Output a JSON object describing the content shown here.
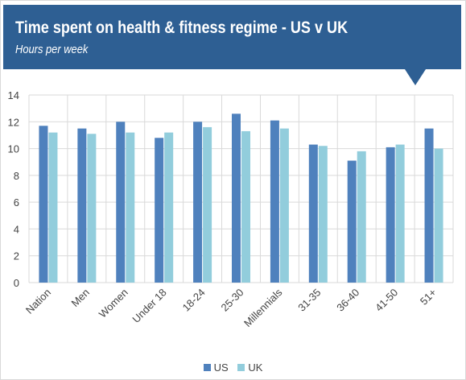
{
  "header": {
    "title": "Time spent on health & fitness regime - US v UK",
    "subtitle": "Hours per week"
  },
  "colors": {
    "banner": "#2e5f93",
    "us": "#4f81bd",
    "uk": "#92cddc",
    "grid": "#d9d9d9"
  },
  "chart_data": {
    "type": "bar",
    "title": "Time spent on health & fitness regime - US v UK",
    "subtitle": "Hours per week",
    "xlabel": "",
    "ylabel": "",
    "ylim": [
      0,
      14
    ],
    "yticks": [
      0,
      2,
      4,
      6,
      8,
      10,
      12,
      14
    ],
    "grid": true,
    "legend_position": "bottom",
    "categories": [
      "Nation",
      "Men",
      "Women",
      "Under 18",
      "18-24",
      "25-30",
      "Millennials",
      "31-35",
      "36-40",
      "41-50",
      "51+"
    ],
    "series": [
      {
        "name": "US",
        "values": [
          11.7,
          11.5,
          12.0,
          10.8,
          12.0,
          12.6,
          12.1,
          10.3,
          9.1,
          10.1,
          11.5
        ]
      },
      {
        "name": "UK",
        "values": [
          11.2,
          11.1,
          11.2,
          11.2,
          11.6,
          11.3,
          11.5,
          10.2,
          9.8,
          10.3,
          10.0
        ]
      }
    ]
  }
}
